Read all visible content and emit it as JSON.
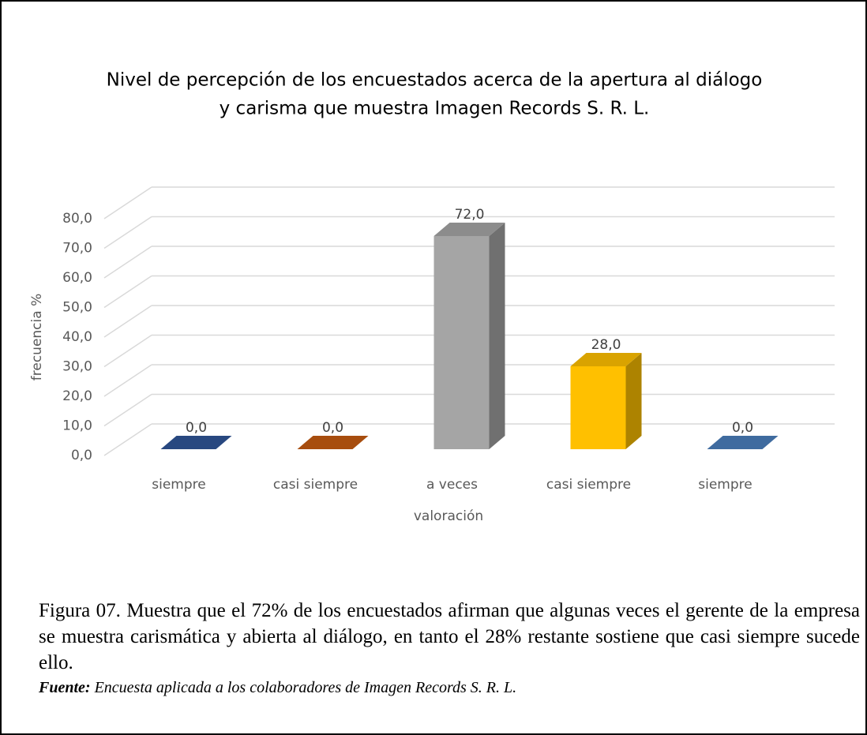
{
  "chart_data": {
    "type": "bar",
    "title": [
      "Nivel de percepción de los encuestados acerca de la apertura al diálogo",
      "y carisma que muestra Imagen Records S. R. L."
    ],
    "x_label": "valoración",
    "y_label": "frecuencia %",
    "categories": [
      "siempre",
      "casi siempre",
      "a veces",
      "casi siempre",
      "siempre"
    ],
    "values": [
      0,
      0,
      72,
      28,
      0
    ],
    "value_labels": [
      "0,0",
      "0,0",
      "72,0",
      "28,0",
      "0,0"
    ],
    "colors": [
      "#2f5597",
      "#c55a11",
      "#a5a5a5",
      "#ffc000",
      "#4a7ebb"
    ],
    "ylim": [
      0,
      80
    ],
    "yticks": [
      {
        "value": 0,
        "label": "0,0"
      },
      {
        "value": 10,
        "label": "10,0"
      },
      {
        "value": 20,
        "label": "20,0"
      },
      {
        "value": 30,
        "label": "30,0"
      },
      {
        "value": 40,
        "label": "40,0"
      },
      {
        "value": 50,
        "label": "50,0"
      },
      {
        "value": 60,
        "label": "60,0"
      },
      {
        "value": 70,
        "label": "70,0"
      },
      {
        "value": 80,
        "label": "80,0"
      }
    ],
    "grid": true
  },
  "caption": "Figura 07. Muestra que el 72% de los encuestados afirman que algunas veces el gerente de la empresa se muestra carismática y abierta al diálogo, en tanto el 28% restante sostiene que casi siempre sucede ello.",
  "source": {
    "label": "Fuente:",
    "text": "Encuesta aplicada a los colaboradores de Imagen Records S. R. L."
  }
}
